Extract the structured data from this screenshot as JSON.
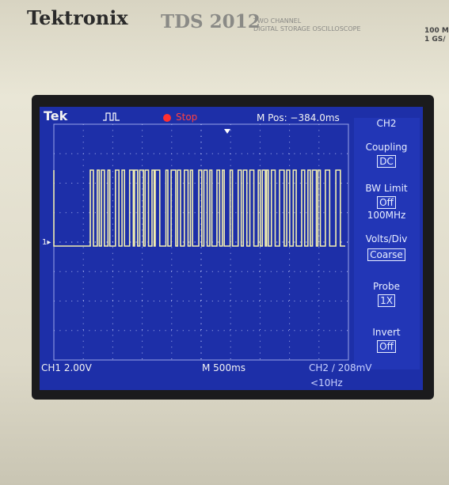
{
  "brand": "Tektronix",
  "model": "TDS 2012",
  "model_line1": "TWO CHANNEL",
  "model_line2": "DIGITAL STORAGE OSCILLOSCOPE",
  "spec_line1": "100 M",
  "spec_line2": "1 GS/",
  "screen": {
    "logo": "Tek",
    "status": "Stop",
    "position": "M Pos: −384.0ms",
    "marker": "1▸",
    "menu": {
      "title": "CH2",
      "coupling": "Coupling",
      "coupling_value": "DC",
      "bw_limit": "BW Limit",
      "bw_value": "Off",
      "bw_freq": "100MHz",
      "volts_div": "Volts/Div",
      "volts_value": "Coarse",
      "probe": "Probe",
      "probe_value": "1X",
      "invert": "Invert",
      "invert_value": "Off"
    },
    "footer": {
      "ch1": "CH1 2.00V",
      "timebase": "M 500ms",
      "trigger": "CH2 ∕ 208mV",
      "frequency": "<10Hz"
    }
  }
}
